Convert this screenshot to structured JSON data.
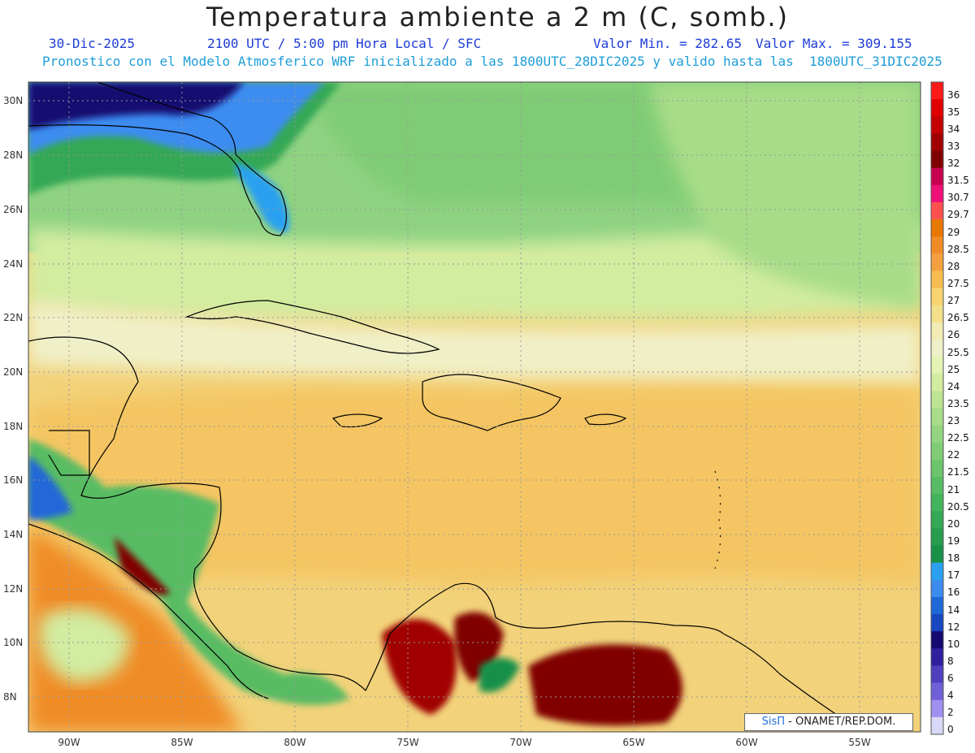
{
  "title": "Temperatura ambiente a 2 m (C, somb.)",
  "date": "30-Dic-2025",
  "time": "2100 UTC / 5:00 pm Hora Local / SFC",
  "min_label": "Valor Min. = 282.65",
  "max_label": "Valor Max. = 309.155",
  "model_line": "Pronostico con el Modelo Atmosferico WRF inicializado a las 1800UTC_28DIC2025 y valido hasta las  1800UTC_31DIC2025",
  "lat_labels": [
    "30N",
    "28N",
    "26N",
    "24N",
    "22N",
    "20N",
    "18N",
    "16N",
    "14N",
    "12N",
    "10N",
    "8N"
  ],
  "lon_labels": [
    "90W",
    "85W",
    "80W",
    "75W",
    "70W",
    "65W",
    "60W",
    "55W"
  ],
  "colorbar": {
    "labels": [
      "36",
      "35",
      "34",
      "33",
      "32",
      "31.5",
      "30.7",
      "29.7",
      "29",
      "28.5",
      "28",
      "27.5",
      "27",
      "26.5",
      "26",
      "25.5",
      "25",
      "24",
      "23.5",
      "23",
      "22.5",
      "22",
      "21.5",
      "21",
      "20.5",
      "20",
      "19",
      "18",
      "17",
      "16",
      "14",
      "12",
      "10",
      "8",
      "6",
      "4",
      "2",
      "0"
    ],
    "colors": [
      "#ff1a1a",
      "#e00000",
      "#c40000",
      "#a00000",
      "#800000",
      "#c80050",
      "#f0107a",
      "#ff5050",
      "#e87800",
      "#f08c28",
      "#f4a040",
      "#f6bc50",
      "#f8d470",
      "#f4e08a",
      "#f2ecb4",
      "#f0f0c8",
      "#e4f2b4",
      "#d2eca0",
      "#bce492",
      "#a8dc88",
      "#94d480",
      "#80cc76",
      "#6cc46c",
      "#58bc64",
      "#44b45c",
      "#34a854",
      "#269c4c",
      "#189048",
      "#2aa0f0",
      "#3c8cf0",
      "#2068d8",
      "#1848c0",
      "#140a70",
      "#3020a0",
      "#5040c0",
      "#7060d8",
      "#a090f0",
      "#d8d8f8"
    ]
  },
  "credit": {
    "brand": "SisΠ",
    "text": " - ONAMET/REP.DOM."
  }
}
